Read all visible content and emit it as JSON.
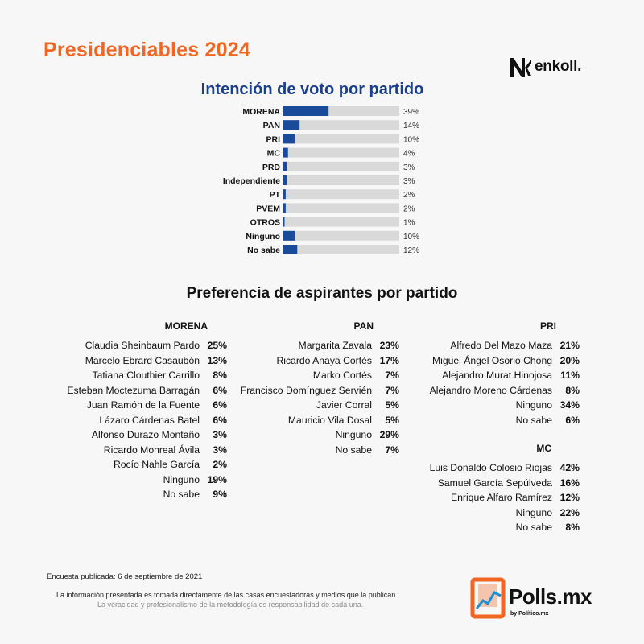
{
  "header": {
    "title": "Presidenciables 2024",
    "brand_enkoll": "enkoll."
  },
  "chart_data": {
    "type": "bar",
    "orientation": "horizontal",
    "title": "Intención de voto por partido",
    "categories": [
      "MORENA",
      "PAN",
      "PRI",
      "MC",
      "PRD",
      "Independiente",
      "PT",
      "PVEM",
      "OTROS",
      "Ninguno",
      "No sabe"
    ],
    "values": [
      39,
      14,
      10,
      4,
      3,
      3,
      2,
      2,
      1,
      10,
      12
    ],
    "value_labels": [
      "39%",
      "14%",
      "10%",
      "4%",
      "3%",
      "3%",
      "2%",
      "2%",
      "1%",
      "10%",
      "12%"
    ],
    "xlim": [
      0,
      100
    ],
    "bar_color": "#1a4a9a",
    "track_color": "#d9d9d9",
    "grid": false,
    "legend": "none"
  },
  "section": {
    "title": "Preferencia de aspirantes por partido"
  },
  "aspirants": {
    "morena": {
      "party": "MORENA",
      "rows": [
        {
          "name": "Claudia Sheinbaum Pardo",
          "pct": "25%"
        },
        {
          "name": "Marcelo Ebrard Casaubón",
          "pct": "13%"
        },
        {
          "name": "Tatiana Clouthier Carrillo",
          "pct": "8%"
        },
        {
          "name": "Esteban Moctezuma Barragán",
          "pct": "6%"
        },
        {
          "name": "Juan Ramón de la Fuente",
          "pct": "6%"
        },
        {
          "name": "Lázaro Cárdenas Batel",
          "pct": "6%"
        },
        {
          "name": "Alfonso Durazo Montaño",
          "pct": "3%"
        },
        {
          "name": "Ricardo Monreal Ávila",
          "pct": "3%"
        },
        {
          "name": "Rocío Nahle García",
          "pct": "2%"
        },
        {
          "name": "Ninguno",
          "pct": "19%"
        },
        {
          "name": "No sabe",
          "pct": "9%"
        }
      ]
    },
    "pan": {
      "party": "PAN",
      "rows": [
        {
          "name": "Margarita Zavala",
          "pct": "23%"
        },
        {
          "name": "Ricardo Anaya Cortés",
          "pct": "17%"
        },
        {
          "name": "Marko Cortés",
          "pct": "7%"
        },
        {
          "name": "Francisco Domínguez Servién",
          "pct": "7%"
        },
        {
          "name": "Javier Corral",
          "pct": "5%"
        },
        {
          "name": "Mauricio Vila Dosal",
          "pct": "5%"
        },
        {
          "name": "Ninguno",
          "pct": "29%"
        },
        {
          "name": "No sabe",
          "pct": "7%"
        }
      ]
    },
    "pri": {
      "party": "PRI",
      "rows": [
        {
          "name": "Alfredo Del Mazo Maza",
          "pct": "21%"
        },
        {
          "name": "Miguel Ángel Osorio Chong",
          "pct": "20%"
        },
        {
          "name": "Alejandro Murat Hinojosa",
          "pct": "11%"
        },
        {
          "name": "Alejandro Moreno Cárdenas",
          "pct": "8%"
        },
        {
          "name": "Ninguno",
          "pct": "34%"
        },
        {
          "name": "No sabe",
          "pct": "6%"
        }
      ]
    },
    "mc": {
      "party": "MC",
      "rows": [
        {
          "name": "Luis Donaldo Colosio Riojas",
          "pct": "42%"
        },
        {
          "name": "Samuel García Sepúlveda",
          "pct": "16%"
        },
        {
          "name": "Enrique Alfaro Ramírez",
          "pct": "12%"
        },
        {
          "name": "Ninguno",
          "pct": "22%"
        },
        {
          "name": "No sabe",
          "pct": "8%"
        }
      ]
    }
  },
  "footer": {
    "published": "Encuesta publicada: 6 de septiembre de 2021",
    "note1": "La información presentada es tomada directamente de las casas encuestadoras y medios que la publican.",
    "note2": "La veracidad y profesionalismo de la metodología es responsabilidad de cada una.",
    "brand": "Polls.mx",
    "brand_by": "by Político.mx",
    "brand_color": "#f26522",
    "accent_blue": "#1a3f8f"
  }
}
